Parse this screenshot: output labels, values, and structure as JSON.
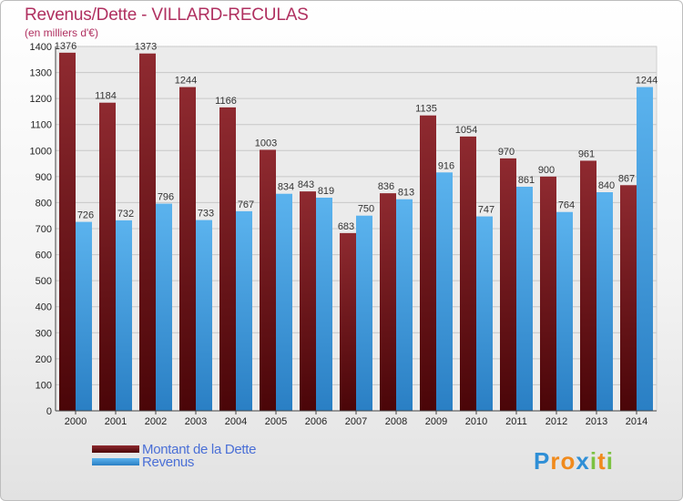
{
  "title": "Revenus/Dette - VILLARD-RECULAS",
  "subtitle": "(en milliers d'€)",
  "colors": {
    "dette": "#7a1a1f",
    "revenus": "#3a9ee6",
    "title": "#b03060",
    "legend_text": "#4a6fd6"
  },
  "legend": [
    {
      "label": "Montant de la Dette",
      "color_key": "dette"
    },
    {
      "label": "Revenus",
      "color_key": "revenus"
    }
  ],
  "logo": {
    "letters": [
      {
        "ch": "P",
        "color": "#2f8fd6"
      },
      {
        "ch": "r",
        "color": "#f08a1c"
      },
      {
        "ch": "o",
        "color": "#f08a1c"
      },
      {
        "ch": "x",
        "color": "#2f8fd6"
      },
      {
        "ch": "i",
        "color": "#7cc242"
      },
      {
        "ch": "t",
        "color": "#f08a1c"
      },
      {
        "ch": "i",
        "color": "#7cc242"
      }
    ]
  },
  "chart_data": {
    "type": "bar",
    "categories": [
      "2000",
      "2001",
      "2002",
      "2003",
      "2004",
      "2005",
      "2006",
      "2007",
      "2008",
      "2009",
      "2010",
      "2011",
      "2012",
      "2013",
      "2014"
    ],
    "series": [
      {
        "name": "Montant de la Dette",
        "values": [
          1376,
          1184,
          1373,
          1244,
          1166,
          1003,
          843,
          683,
          836,
          1135,
          1054,
          970,
          900,
          961,
          867
        ]
      },
      {
        "name": "Revenus",
        "values": [
          726,
          732,
          796,
          733,
          767,
          834,
          819,
          750,
          813,
          916,
          747,
          861,
          764,
          840,
          1244
        ]
      }
    ],
    "ylim": [
      0,
      1400
    ],
    "yticks": [
      0,
      100,
      200,
      300,
      400,
      500,
      600,
      700,
      800,
      900,
      1000,
      1100,
      1200,
      1300,
      1400
    ],
    "grid": true,
    "legend_position": "bottom-left"
  }
}
